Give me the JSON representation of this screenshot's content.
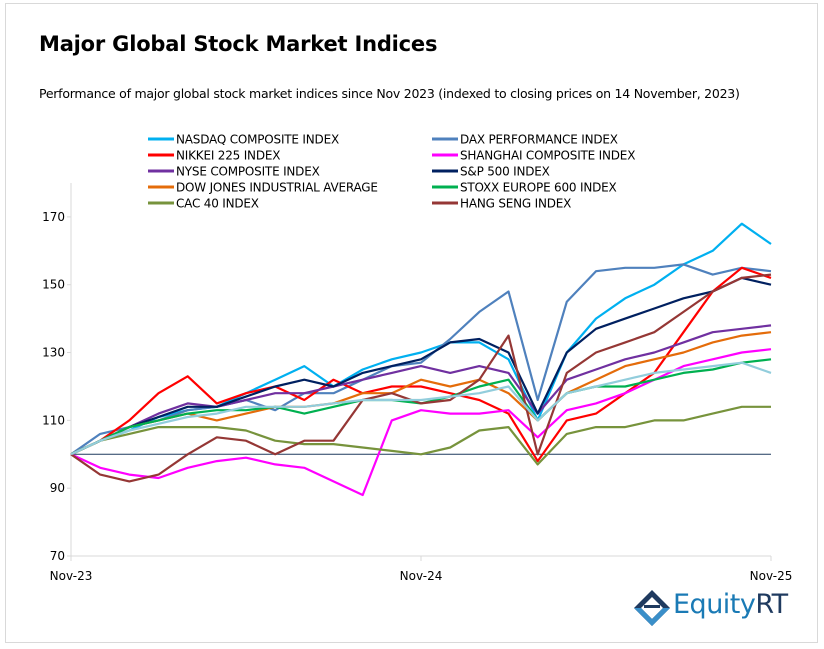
{
  "chart_data": {
    "type": "line",
    "title": "Major Global Stock Market Indices",
    "subtitle": "Performance of major global stock market indices since Nov 2023 (indexed to closing prices on 14 November, 2023)",
    "xlabel": "",
    "ylabel": "",
    "x_ticks": [
      "Nov-23",
      "Nov-24",
      "Nov-25"
    ],
    "y_ticks": [
      70,
      90,
      110,
      130,
      150,
      170
    ],
    "ylim": [
      70,
      180
    ],
    "grid": false,
    "legend_placement": "top",
    "baseline": 100,
    "x": [
      "Nov-23",
      "Dec-23",
      "Jan-24",
      "Feb-24",
      "Mar-24",
      "Apr-24",
      "May-24",
      "Jun-24",
      "Jul-24",
      "Aug-24",
      "Sep-24",
      "Oct-24",
      "Nov-24",
      "Dec-24",
      "Jan-25",
      "Feb-25",
      "Mar-25",
      "Apr-25",
      "May-25",
      "Jun-25",
      "Jul-25",
      "Aug-25",
      "Sep-25",
      "Oct-25",
      "Nov-25"
    ],
    "series": [
      {
        "name": "NASDAQ COMPOSITE INDEX",
        "color": "#00b0f0",
        "values": [
          100,
          104,
          107,
          111,
          113,
          114,
          118,
          122,
          126,
          120,
          125,
          128,
          130,
          133,
          133,
          128,
          110,
          130,
          140,
          146,
          150,
          156,
          160,
          168,
          162
        ]
      },
      {
        "name": "DAX PERFORMANCE INDEX",
        "color": "#4f81bd",
        "values": [
          100,
          106,
          108,
          110,
          113,
          114,
          116,
          113,
          118,
          118,
          122,
          126,
          127,
          134,
          142,
          148,
          116,
          145,
          154,
          155,
          155,
          156,
          153,
          155,
          154
        ]
      },
      {
        "name": "NIKKEI 225 INDEX",
        "color": "#ff0000",
        "values": [
          100,
          104,
          110,
          118,
          123,
          115,
          118,
          120,
          116,
          122,
          118,
          120,
          120,
          118,
          116,
          112,
          98,
          110,
          112,
          118,
          124,
          136,
          148,
          155,
          152
        ]
      },
      {
        "name": "SHANGHAI COMPOSITE INDEX",
        "color": "#ff00ff",
        "values": [
          100,
          96,
          94,
          93,
          96,
          98,
          99,
          97,
          96,
          92,
          88,
          110,
          113,
          112,
          112,
          113,
          105,
          113,
          115,
          118,
          122,
          126,
          128,
          130,
          131
        ]
      },
      {
        "name": "NYSE COMPOSITE INDEX",
        "color": "#7030a0",
        "values": [
          100,
          104,
          108,
          112,
          115,
          114,
          116,
          118,
          118,
          120,
          122,
          124,
          126,
          124,
          126,
          124,
          112,
          122,
          125,
          128,
          130,
          133,
          136,
          137,
          138
        ]
      },
      {
        "name": "S&P 500 INDEX",
        "color": "#002060",
        "values": [
          100,
          104,
          108,
          111,
          114,
          114,
          117,
          120,
          122,
          120,
          124,
          126,
          128,
          133,
          134,
          130,
          112,
          130,
          137,
          140,
          143,
          146,
          148,
          152,
          150
        ]
      },
      {
        "name": "DOW JONES INDUSTRIAL AVERAGE",
        "color": "#e46c0a",
        "values": [
          100,
          104,
          108,
          110,
          112,
          110,
          112,
          114,
          114,
          115,
          118,
          118,
          122,
          120,
          122,
          118,
          110,
          118,
          122,
          126,
          128,
          130,
          133,
          135,
          136
        ]
      },
      {
        "name": "STOXX EUROPE 600 INDEX",
        "color": "#00b050",
        "values": [
          100,
          104,
          108,
          110,
          112,
          113,
          113,
          114,
          112,
          114,
          116,
          116,
          115,
          117,
          120,
          122,
          110,
          118,
          120,
          120,
          122,
          124,
          125,
          127,
          128
        ]
      },
      {
        "name": "CAC 40 INDEX",
        "color": "#77933c",
        "values": [
          100,
          104,
          106,
          108,
          108,
          108,
          107,
          104,
          103,
          103,
          102,
          101,
          100,
          102,
          107,
          108,
          97,
          106,
          108,
          108,
          110,
          110,
          112,
          114,
          114
        ]
      },
      {
        "name": "HANG SENG INDEX",
        "color": "#953735",
        "values": [
          100,
          94,
          92,
          94,
          100,
          105,
          104,
          100,
          104,
          104,
          116,
          118,
          115,
          116,
          122,
          135,
          100,
          124,
          130,
          133,
          136,
          142,
          148,
          152,
          153
        ]
      },
      {
        "color": "#92cddc",
        "values": [
          100,
          104,
          107,
          109,
          111,
          112,
          114,
          114,
          114,
          115,
          116,
          116,
          116,
          117,
          118,
          120,
          110,
          118,
          120,
          122,
          124,
          125,
          126,
          127,
          124
        ]
      }
    ]
  },
  "logo": {
    "text_main": "Equity",
    "text_accent": "RT"
  }
}
